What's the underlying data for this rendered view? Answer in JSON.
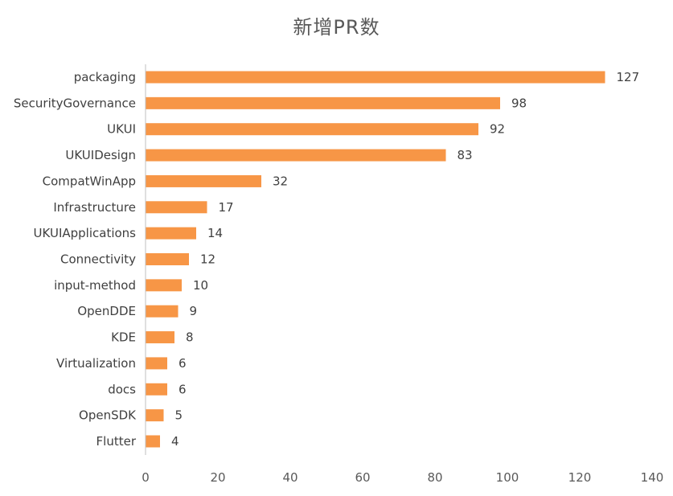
{
  "chart_data": {
    "type": "bar",
    "orientation": "horizontal",
    "title": "新增PR数",
    "categories": [
      "packaging",
      "SecurityGovernance",
      "UKUI",
      "UKUIDesign",
      "CompatWinApp",
      "Infrastructure",
      "UKUIApplications",
      "Connectivity",
      "input-method",
      "OpenDDE",
      "KDE",
      "Virtualization",
      "docs",
      "OpenSDK",
      "Flutter"
    ],
    "values": [
      127,
      98,
      92,
      83,
      32,
      17,
      14,
      12,
      10,
      9,
      8,
      6,
      6,
      5,
      4
    ],
    "x_ticks": [
      "0",
      "20",
      "40",
      "60",
      "80",
      "100",
      "120",
      "140"
    ],
    "xlim": [
      0,
      140
    ],
    "grid": false,
    "legend": false,
    "data_labels": true,
    "colors": {
      "bar": "#F79646",
      "text": "#404040",
      "title": "#595959",
      "axis": "#BFBFBF"
    }
  }
}
